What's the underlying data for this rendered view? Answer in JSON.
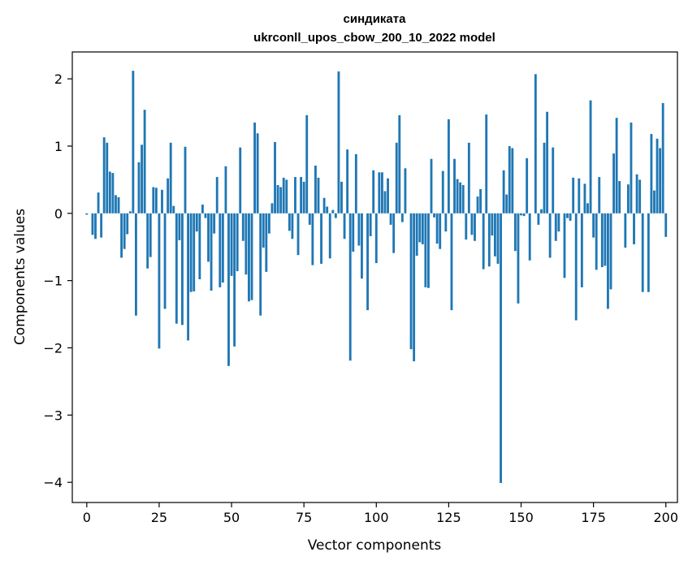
{
  "chart_data": {
    "type": "bar",
    "title": "синдиката",
    "subtitle": "ukrconll_upos_cbow_200_10_2022 model",
    "xlabel": "Vector components",
    "ylabel": "Components values",
    "xlim": [
      -5,
      204
    ],
    "ylim": [
      -4.3,
      2.4
    ],
    "xticks": [
      0,
      25,
      50,
      75,
      100,
      125,
      150,
      175,
      200
    ],
    "xtick_labels": [
      "0",
      "25",
      "50",
      "75",
      "100",
      "125",
      "150",
      "175",
      "200"
    ],
    "yticks": [
      2,
      1,
      0,
      -1,
      -2,
      -3,
      -4
    ],
    "ytick_labels": [
      "2",
      "1",
      "0",
      "−1",
      "−2",
      "−3",
      "−4"
    ],
    "values": [
      -0.02,
      0.0,
      -0.32,
      -0.38,
      0.31,
      -0.36,
      1.13,
      1.05,
      0.62,
      0.6,
      0.27,
      0.24,
      -0.66,
      -0.53,
      -0.31,
      0.03,
      2.12,
      -1.52,
      0.76,
      1.02,
      1.54,
      -0.82,
      -0.65,
      0.39,
      0.38,
      -2.01,
      0.35,
      -1.42,
      0.52,
      1.05,
      0.11,
      -1.64,
      -0.4,
      -1.66,
      0.99,
      -1.89,
      -1.17,
      -1.16,
      -0.27,
      -0.98,
      0.13,
      -0.07,
      -0.72,
      -1.15,
      -0.3,
      0.54,
      -1.1,
      -1.03,
      0.7,
      -2.27,
      -0.93,
      -1.98,
      -0.86,
      0.98,
      -0.41,
      -0.91,
      -1.31,
      -1.29,
      1.35,
      1.19,
      -1.52,
      -0.51,
      -0.87,
      -0.3,
      0.15,
      1.06,
      0.42,
      0.39,
      0.53,
      0.5,
      -0.26,
      -0.38,
      0.54,
      -0.62,
      0.54,
      0.47,
      1.46,
      -0.17,
      -0.77,
      0.71,
      0.53,
      -0.75,
      0.23,
      0.1,
      -0.67,
      0.05,
      -0.07,
      2.11,
      0.47,
      -0.38,
      0.95,
      -2.19,
      -0.57,
      0.88,
      -0.48,
      -0.97,
      0.0,
      -1.44,
      -0.34,
      0.64,
      -0.74,
      0.61,
      0.61,
      0.33,
      0.52,
      -0.17,
      -0.59,
      1.05,
      1.46,
      -0.13,
      0.67,
      0.0,
      -2.02,
      -2.2,
      -0.63,
      -0.43,
      -0.46,
      -1.1,
      -1.11,
      0.81,
      -0.06,
      -0.45,
      -0.53,
      0.63,
      -0.27,
      1.4,
      -1.44,
      0.81,
      0.51,
      0.46,
      0.42,
      -0.39,
      1.05,
      -0.32,
      -0.41,
      0.25,
      0.36,
      -0.83,
      1.47,
      -0.79,
      -0.33,
      -0.64,
      -0.75,
      -4.01,
      0.64,
      0.28,
      1.0,
      0.97,
      -0.56,
      -1.34,
      -0.03,
      -0.04,
      0.82,
      -0.7,
      0.0,
      2.07,
      -0.17,
      0.06,
      1.05,
      1.51,
      -0.66,
      0.98,
      -0.41,
      -0.27,
      0.0,
      -0.96,
      -0.07,
      -0.11,
      0.53,
      -1.59,
      0.52,
      -1.1,
      0.44,
      0.15,
      1.68,
      -0.36,
      -0.84,
      0.54,
      -0.8,
      -0.78,
      -1.42,
      -1.13,
      0.89,
      1.42,
      0.48,
      0.0,
      -0.51,
      0.43,
      1.35,
      -0.46,
      0.58,
      0.5,
      -1.17,
      0.0,
      -1.17,
      1.18,
      0.34,
      1.11,
      0.97,
      1.64,
      -0.35
    ]
  }
}
